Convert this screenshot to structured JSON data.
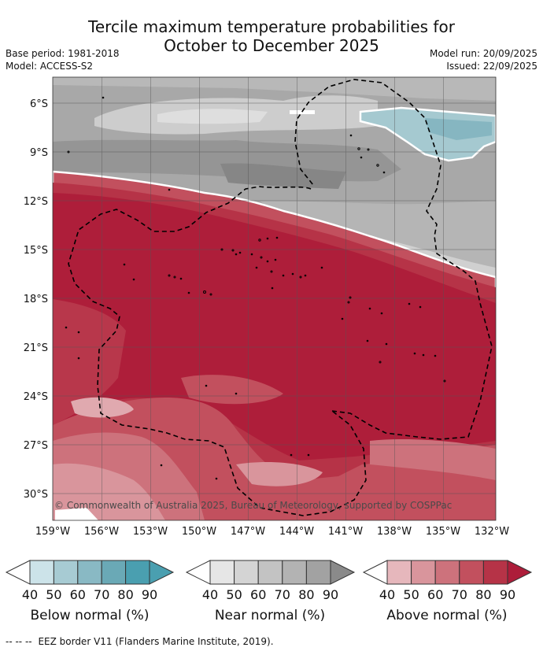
{
  "title": {
    "line1": "Tercile maximum temperature probabilities for",
    "line2": "October to December 2025"
  },
  "meta": {
    "base_period": "Base period: 1981-2018",
    "model": "Model: ACCESS-S2",
    "model_run": "Model run: 20/09/2025",
    "issued": "Issued: 22/09/2025"
  },
  "map": {
    "lon_labels": [
      "159°W",
      "156°W",
      "153°W",
      "150°W",
      "147°W",
      "144°W",
      "141°W",
      "138°W",
      "135°W",
      "132°W"
    ],
    "lat_labels": [
      "6°S",
      "9°S",
      "12°S",
      "15°S",
      "18°S",
      "21°S",
      "24°S",
      "27°S",
      "30°S"
    ],
    "copyright": "© Commonwealth of Australia 2025, Bureau of Meteorology, supported by COSPPac"
  },
  "legends": [
    {
      "name": "Below normal (%)",
      "ticks": [
        "40",
        "50",
        "60",
        "70",
        "80",
        "90"
      ],
      "colors": [
        "#ffffff",
        "#cce3e9",
        "#a7cbd3",
        "#89b9c4",
        "#6aa9b6",
        "#4a9fb0"
      ]
    },
    {
      "name": "Near normal (%)",
      "ticks": [
        "40",
        "50",
        "60",
        "70",
        "80",
        "90"
      ],
      "colors": [
        "#ffffff",
        "#e6e6e6",
        "#d4d4d4",
        "#c3c3c3",
        "#b3b3b3",
        "#a2a2a2",
        "#8a8a8a"
      ]
    },
    {
      "name": "Above normal (%)",
      "ticks": [
        "40",
        "50",
        "60",
        "70",
        "80",
        "90"
      ],
      "colors": [
        "#ffffff",
        "#e6b7bc",
        "#d9959c",
        "#cd727c",
        "#c2505e",
        "#b63347",
        "#ad1d3a"
      ]
    }
  ],
  "footnote": {
    "symbol": "-- -- --",
    "text": "EEZ border V11 (Flanders Marine Institute, 2019)."
  }
}
